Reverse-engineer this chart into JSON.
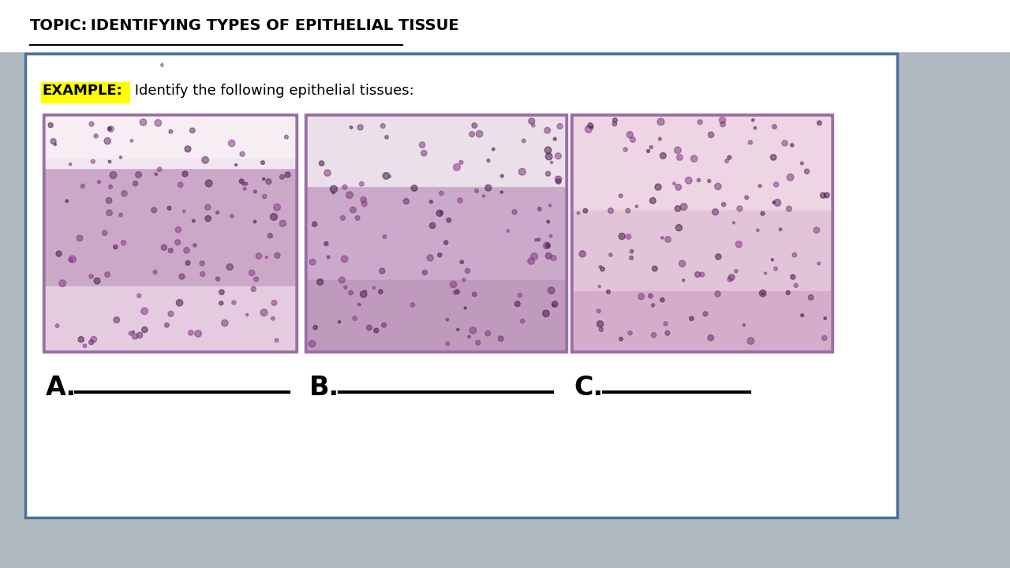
{
  "title_bold": "TOPIC:",
  "title_rest": " IDENTIFYING TYPES OF EPITHELIAL TISSUE",
  "example_label": "EXAMPLE:",
  "example_text": " Identify the following epithelial tissues:",
  "label_a": "A.",
  "label_b": "B.",
  "label_c": "C.",
  "outer_box_color": "#4a6fa5",
  "img_border_color": "#9b6ea8",
  "example_highlight": "#ffff00",
  "slide_bg": "#ffffff",
  "outer_bg": "#b0b8c0",
  "top_bg": "#ffffff"
}
